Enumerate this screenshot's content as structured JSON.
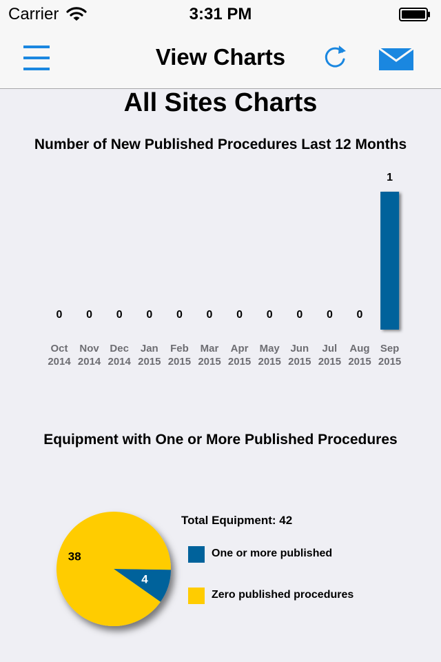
{
  "status_bar": {
    "carrier": "Carrier",
    "time": "3:31 PM"
  },
  "nav_bar": {
    "title": "View Charts",
    "left_icon": "menu-icon",
    "right_icons": [
      "refresh-icon",
      "mail-icon"
    ],
    "accent_color": "#1a87e0"
  },
  "page": {
    "heading": "All Sites Charts"
  },
  "charts": {
    "bar_title": "Number of New Published Procedures Last 12 Months",
    "pie_title": "Equipment with One or More Published Procedures"
  },
  "legend": {
    "total": "Total Equipment: 42",
    "items": [
      {
        "label": "One or more published",
        "color": "#00629b"
      },
      {
        "label": "Zero published procedures",
        "color": "#ffcc00"
      }
    ]
  },
  "chart_data": [
    {
      "type": "bar",
      "title": "Number of New Published Procedures Last 12 Months",
      "categories": [
        [
          "Oct",
          "2014"
        ],
        [
          "Nov",
          "2014"
        ],
        [
          "Dec",
          "2014"
        ],
        [
          "Jan",
          "2015"
        ],
        [
          "Feb",
          "2015"
        ],
        [
          "Mar",
          "2015"
        ],
        [
          "Apr",
          "2015"
        ],
        [
          "May",
          "2015"
        ],
        [
          "Jun",
          "2015"
        ],
        [
          "Jul",
          "2015"
        ],
        [
          "Aug",
          "2015"
        ],
        [
          "Sep",
          "2015"
        ]
      ],
      "values": [
        0,
        0,
        0,
        0,
        0,
        0,
        0,
        0,
        0,
        0,
        0,
        1
      ],
      "ylim": [
        0,
        1
      ],
      "bar_color": "#00629b",
      "grid": false
    },
    {
      "type": "pie",
      "title": "Equipment with One or More Published Procedures",
      "slices": [
        {
          "label": "One or more published",
          "value": 4,
          "color": "#00629b"
        },
        {
          "label": "Zero published procedures",
          "value": 38,
          "color": "#ffcc00"
        }
      ],
      "total": 42,
      "legend": "right"
    }
  ]
}
